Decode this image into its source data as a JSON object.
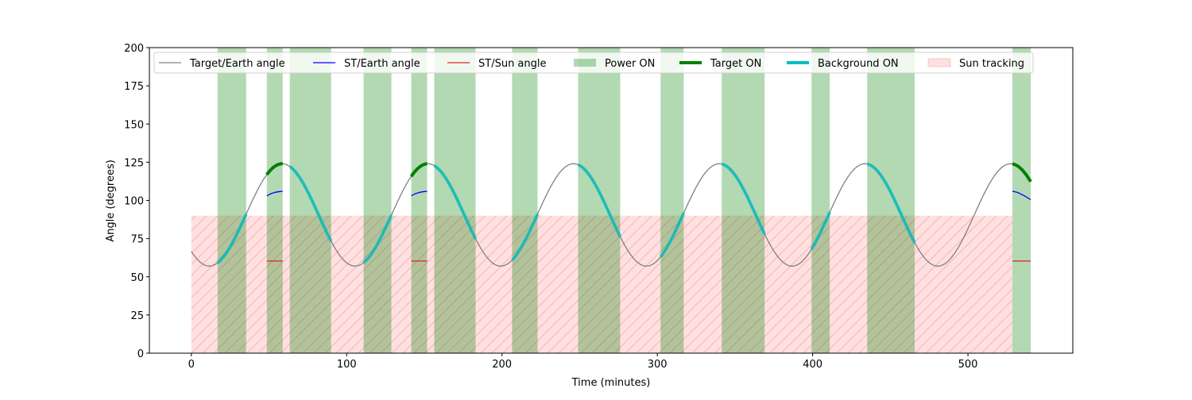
{
  "chart_data": {
    "type": "line",
    "title": "",
    "xlabel": "Time (minutes)",
    "ylabel": "Angle (degrees)",
    "xlim": [
      -27,
      567.5
    ],
    "ylim": [
      0,
      200
    ],
    "xticks": [
      0,
      100,
      200,
      300,
      400,
      500
    ],
    "yticks": [
      0,
      25,
      50,
      75,
      100,
      125,
      150,
      175,
      200
    ],
    "grid": false,
    "legend_placement": "top",
    "legend": [
      {
        "label": "Target/Earth angle",
        "kind": "line",
        "color": "#808080"
      },
      {
        "label": "ST/Earth angle",
        "kind": "line",
        "color": "#0000ff"
      },
      {
        "label": "ST/Sun angle",
        "kind": "line",
        "color": "#d62728"
      },
      {
        "label": "Power ON",
        "kind": "patch",
        "color": "#008000"
      },
      {
        "label": "Target ON",
        "kind": "thick",
        "color": "#008000"
      },
      {
        "label": "Background ON",
        "kind": "thick",
        "color": "#00bfbf"
      },
      {
        "label": "Sun tracking",
        "kind": "hatch",
        "color": "#ff9999"
      }
    ],
    "target_earth_angle": {
      "x_range": [
        0,
        540.4
      ],
      "model": "mean + amplitude*cos(2*pi*(t - peak_time)/period)",
      "mean": 90.5,
      "amplitude": 33.5,
      "period": 93.8,
      "peak_time": 58.5,
      "min": 57,
      "max": 124
    },
    "power_on_intervals": [
      [
        16.9,
        35.3
      ],
      [
        48.6,
        58.8
      ],
      [
        63.4,
        90.0
      ],
      [
        110.9,
        128.8
      ],
      [
        141.6,
        151.8
      ],
      [
        156.4,
        183.0
      ],
      [
        206.5,
        222.9
      ],
      [
        249.0,
        276.1
      ],
      [
        302.1,
        317.0
      ],
      [
        341.5,
        369.1
      ],
      [
        399.3,
        411.0
      ],
      [
        435.1,
        465.7
      ],
      [
        528.6,
        540.4
      ]
    ],
    "target_on_intervals": [
      [
        48.6,
        58.8
      ],
      [
        141.6,
        151.8
      ],
      [
        528.6,
        540.4
      ]
    ],
    "background_on_intervals": [
      [
        16.9,
        35.3
      ],
      [
        63.4,
        90.0
      ],
      [
        110.9,
        128.8
      ],
      [
        156.4,
        183.0
      ],
      [
        206.5,
        222.9
      ],
      [
        249.0,
        276.1
      ],
      [
        302.1,
        317.0
      ],
      [
        341.5,
        369.1
      ],
      [
        399.3,
        411.0
      ],
      [
        435.1,
        465.7
      ]
    ],
    "sun_tracking": {
      "x": [
        0,
        528.6
      ],
      "y": [
        0,
        90
      ]
    },
    "st_earth_angle": [
      [
        [
          48.6,
          103
        ],
        [
          51,
          104.3
        ],
        [
          54,
          105.3
        ],
        [
          57,
          105.8
        ],
        [
          58.8,
          105.9
        ]
      ],
      [
        [
          141.6,
          103
        ],
        [
          144,
          104.3
        ],
        [
          147,
          105.3
        ],
        [
          150,
          105.8
        ],
        [
          151.8,
          105.9
        ]
      ],
      [
        [
          528.6,
          106
        ],
        [
          532,
          105.2
        ],
        [
          536,
          103.2
        ],
        [
          540.4,
          100.5
        ]
      ]
    ],
    "st_sun_angle": [
      [
        [
          48.6,
          60.3
        ],
        [
          58.8,
          60.3
        ]
      ],
      [
        [
          141.6,
          60.3
        ],
        [
          151.8,
          60.3
        ]
      ],
      [
        [
          528.6,
          60.3
        ],
        [
          540.4,
          60.3
        ]
      ]
    ]
  }
}
